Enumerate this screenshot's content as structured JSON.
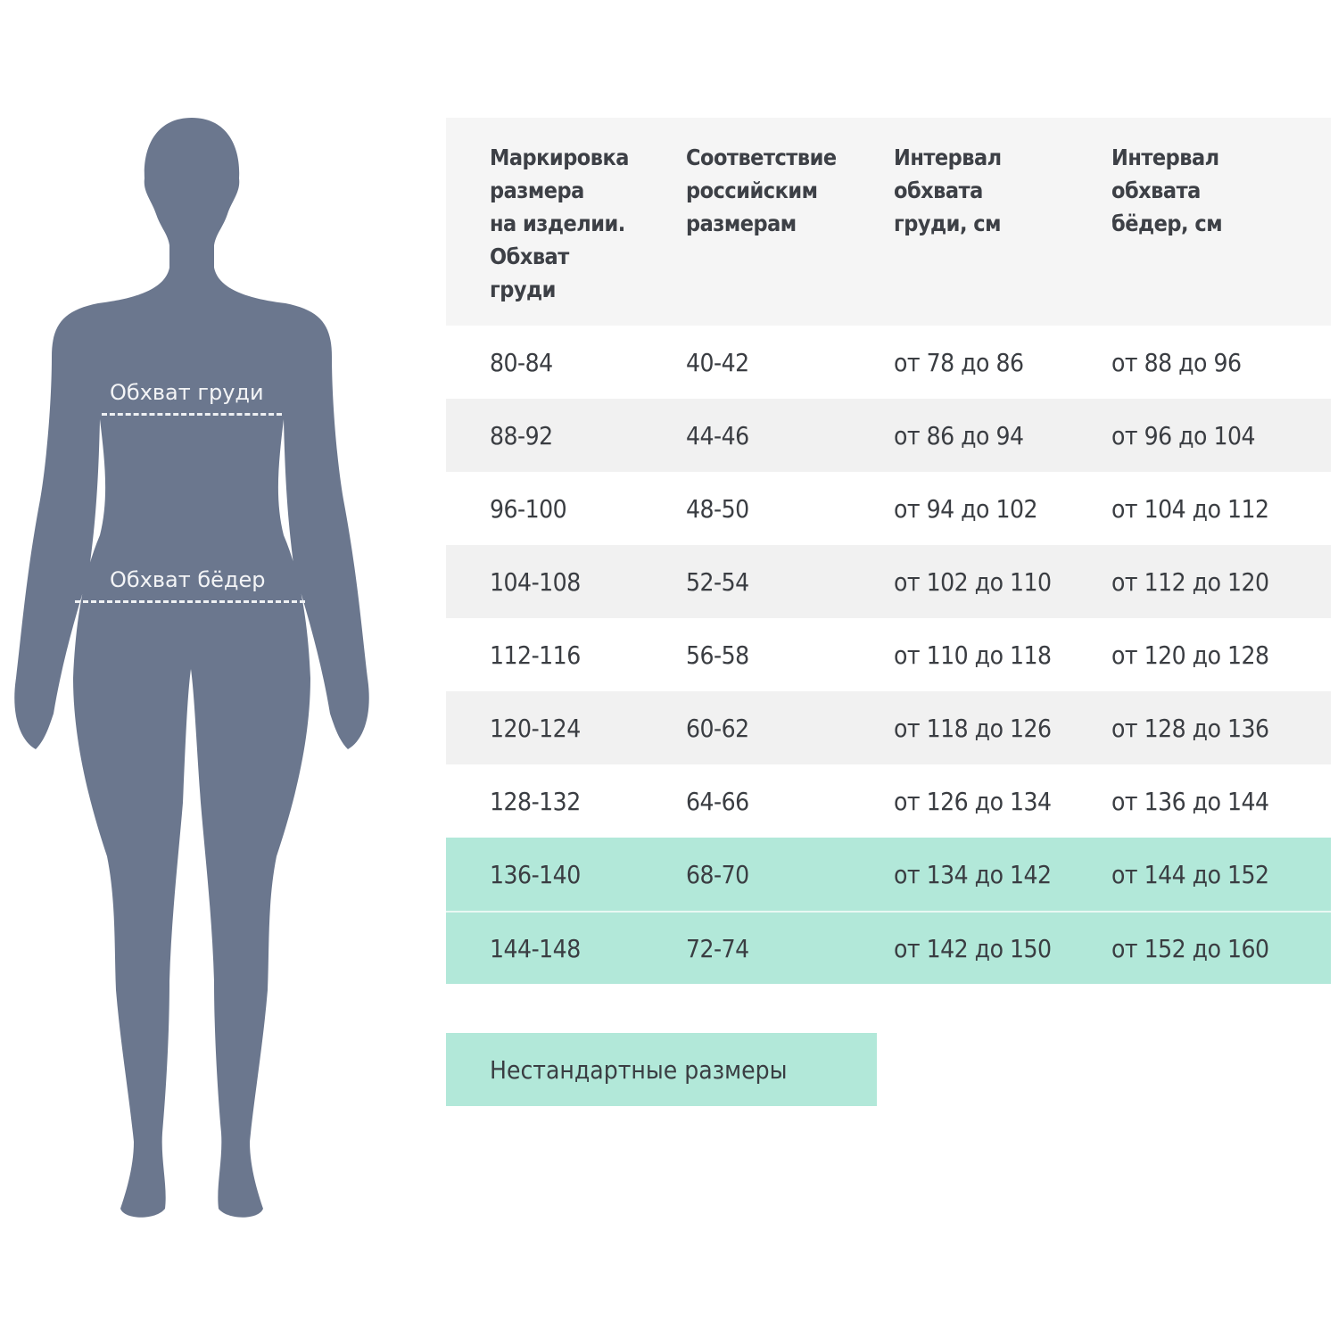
{
  "colors": {
    "figure": "#6b778e",
    "highlight": "#b2e8d9",
    "stripe": "#f1f1f1"
  },
  "figure": {
    "chest_label": "Обхват груди",
    "hips_label": "Обхват бёдер"
  },
  "table": {
    "headers": [
      "Маркировка размера на изделии. Обхват груди",
      "Соответствие российским размерам",
      "Интервал обхвата груди, см",
      "Интервал обхвата бёдер, см"
    ],
    "header_lines": [
      [
        "Маркировка",
        "размера",
        "на изделии.",
        "Обхват",
        "груди"
      ],
      [
        "Соответствие",
        "российским",
        "размерам"
      ],
      [
        "Интервал",
        "обхвата",
        "груди, см"
      ],
      [
        "Интервал",
        "обхвата",
        "бёдер, см"
      ]
    ],
    "rows": [
      [
        "80-84",
        "40-42",
        "от 78 до 86",
        "от 88 до 96"
      ],
      [
        "88-92",
        "44-46",
        "от 86 до 94",
        "от 96 до 104"
      ],
      [
        "96-100",
        "48-50",
        "от 94 до 102",
        "от 104 до 112"
      ],
      [
        "104-108",
        "52-54",
        "от 102 до 110",
        "от 112 до 120"
      ],
      [
        "112-116",
        "56-58",
        "от 110 до 118",
        "от 120 до 128"
      ],
      [
        "120-124",
        "60-62",
        "от 118 до 126",
        "от 128 до 136"
      ],
      [
        "128-132",
        "64-66",
        "от 126 до 134",
        "от 136 до 144"
      ],
      [
        "136-140",
        "68-70",
        "от 134 до 142",
        "от 144 до 152"
      ],
      [
        "144-148",
        "72-74",
        "от 142 до 150",
        "от 152 до 160"
      ]
    ],
    "highlighted_rows": [
      7,
      8
    ]
  },
  "nonstandard_button": "Нестандартные размеры"
}
